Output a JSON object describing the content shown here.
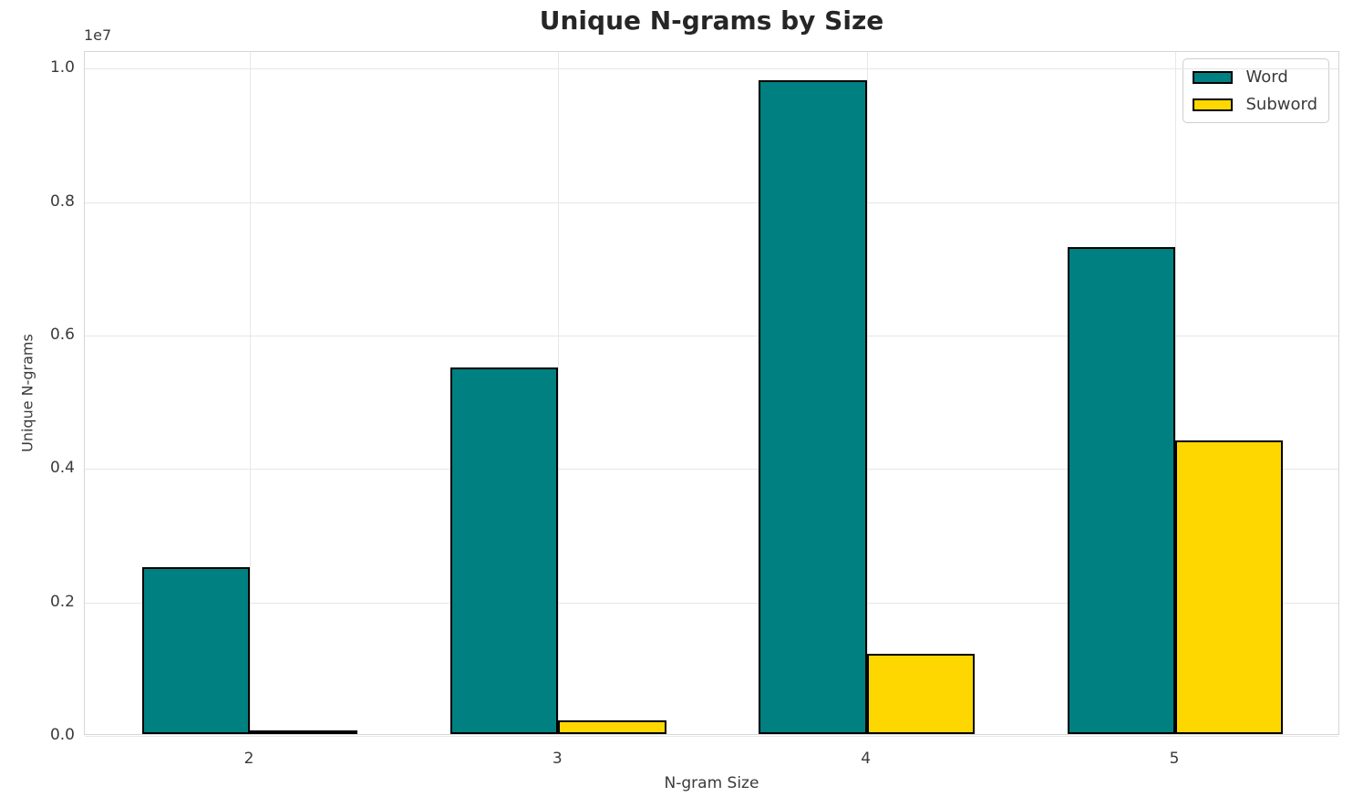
{
  "chart_data": {
    "type": "bar",
    "title": "Unique N-grams by Size",
    "xlabel": "N-gram Size",
    "ylabel": "Unique N-grams",
    "y_offset_label": "1e7",
    "categories": [
      "2",
      "3",
      "4",
      "5"
    ],
    "category_positions": [
      2,
      3,
      4,
      5
    ],
    "series": [
      {
        "name": "Word",
        "color": "#008080",
        "values": [
          2500000,
          5500000,
          9800000,
          7300000
        ]
      },
      {
        "name": "Subword",
        "color": "#FFD700",
        "values": [
          30000,
          200000,
          1200000,
          4400000
        ]
      }
    ],
    "bar_width": 0.35,
    "bar_edge_color": "#000000",
    "xlim": [
      1.465,
      5.535
    ],
    "ylim": [
      0,
      10250000
    ],
    "y_ticks": [
      0,
      2000000,
      4000000,
      6000000,
      8000000,
      10000000
    ],
    "y_tick_labels": [
      "0.0",
      "0.2",
      "0.4",
      "0.6",
      "0.8",
      "1.0"
    ],
    "grid": true,
    "legend_position": "upper right",
    "colors": {
      "background": "#ffffff",
      "grid": "#e7e7e7",
      "spine": "#d6d6d6",
      "text": "#3a3a3a",
      "title": "#262626"
    }
  }
}
